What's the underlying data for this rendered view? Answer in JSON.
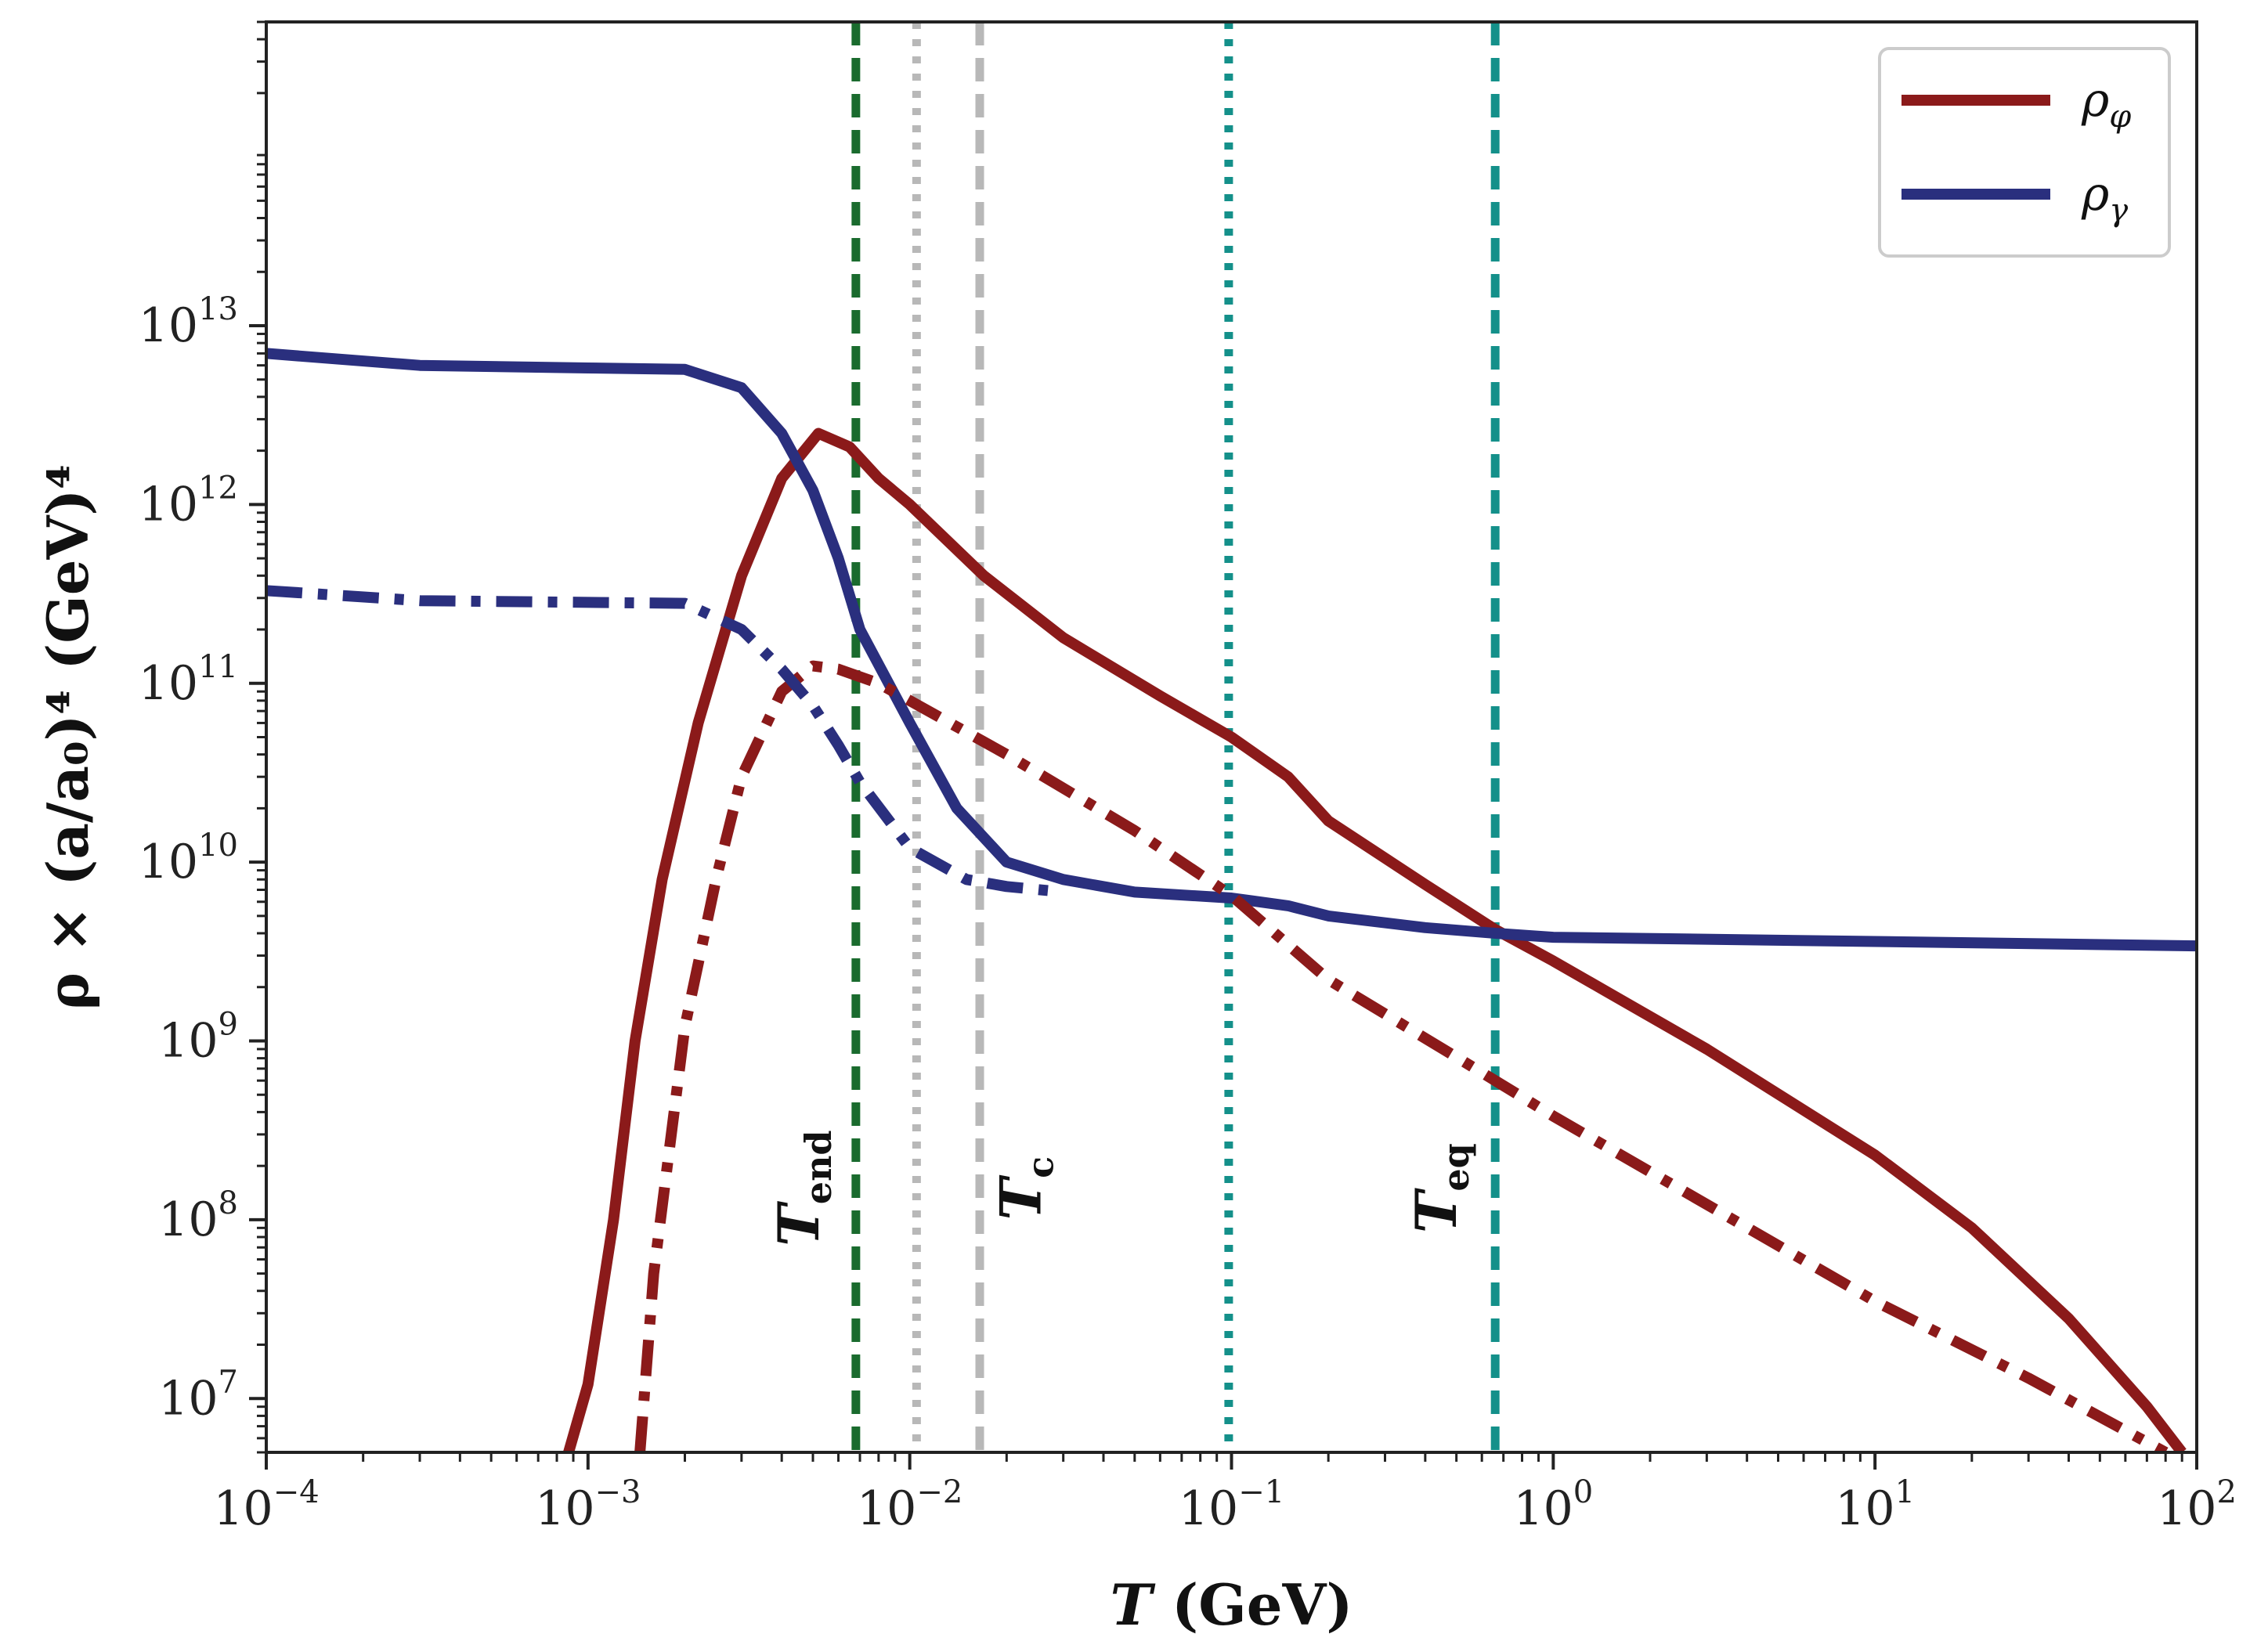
{
  "chart_data": {
    "type": "line",
    "xscale": "log",
    "yscale": "log",
    "xlim": [
      0.0001,
      100
    ],
    "ylim": [
      5000000,
      500000000000000
    ],
    "xlabel_var": "T",
    "xlabel_unit": "(GeV)",
    "ylabel": "ρ × (a/a₀)⁴ (GeV)⁴",
    "x_ticks": [
      {
        "value": 0.0001,
        "base": "10",
        "exp": "−4"
      },
      {
        "value": 0.001,
        "base": "10",
        "exp": "−3"
      },
      {
        "value": 0.01,
        "base": "10",
        "exp": "−2"
      },
      {
        "value": 0.1,
        "base": "10",
        "exp": "−1"
      },
      {
        "value": 1,
        "base": "10",
        "exp": "0"
      },
      {
        "value": 10,
        "base": "10",
        "exp": "1"
      },
      {
        "value": 100,
        "base": "10",
        "exp": "2"
      }
    ],
    "y_ticks": [
      {
        "value": 10000000,
        "base": "10",
        "exp": "7"
      },
      {
        "value": 100000000,
        "base": "10",
        "exp": "8"
      },
      {
        "value": 1000000000,
        "base": "10",
        "exp": "9"
      },
      {
        "value": 10000000000,
        "base": "10",
        "exp": "10"
      },
      {
        "value": 100000000000,
        "base": "10",
        "exp": "11"
      },
      {
        "value": 1000000000000,
        "base": "10",
        "exp": "12"
      },
      {
        "value": 10000000000000,
        "base": "10",
        "exp": "13"
      }
    ],
    "series": [
      {
        "name": "ρ_φ",
        "style": "solid",
        "color": "#8b1a1a",
        "points": [
          [
            0.00087,
            5000000
          ],
          [
            0.001,
            12000000
          ],
          [
            0.0012,
            100000000
          ],
          [
            0.0014,
            1000000000
          ],
          [
            0.0017,
            8000000000
          ],
          [
            0.0022,
            60000000000
          ],
          [
            0.003,
            400000000000
          ],
          [
            0.004,
            1400000000000
          ],
          [
            0.0052,
            2500000000000
          ],
          [
            0.0065,
            2100000000000
          ],
          [
            0.008,
            1400000000000
          ],
          [
            0.01,
            1000000000000
          ],
          [
            0.017,
            400000000000
          ],
          [
            0.03,
            180000000000
          ],
          [
            0.06,
            85000000000
          ],
          [
            0.1,
            50000000000
          ],
          [
            0.15,
            30000000000
          ],
          [
            0.2,
            17000000000
          ],
          [
            0.4,
            7500000000
          ],
          [
            0.66,
            4200000000
          ],
          [
            1,
            2800000000
          ],
          [
            3,
            900000000
          ],
          [
            10,
            230000000
          ],
          [
            20,
            90000000
          ],
          [
            40,
            28000000
          ],
          [
            70,
            9000000
          ],
          [
            90,
            5000000
          ]
        ]
      },
      {
        "name": "ρ_γ",
        "style": "solid",
        "color": "#2a2f7e",
        "points": [
          [
            0.0001,
            7000000000000
          ],
          [
            0.0003,
            6000000000000
          ],
          [
            0.001,
            5800000000000
          ],
          [
            0.002,
            5700000000000
          ],
          [
            0.003,
            4500000000000
          ],
          [
            0.004,
            2500000000000
          ],
          [
            0.005,
            1200000000000
          ],
          [
            0.006,
            500000000000
          ],
          [
            0.007,
            200000000000
          ],
          [
            0.01,
            60000000000
          ],
          [
            0.014,
            20000000000
          ],
          [
            0.02,
            10000000000
          ],
          [
            0.03,
            8000000000
          ],
          [
            0.05,
            6800000000
          ],
          [
            0.1,
            6300000000
          ],
          [
            0.15,
            5700000000
          ],
          [
            0.2,
            5000000000
          ],
          [
            0.4,
            4300000000
          ],
          [
            0.66,
            4000000000
          ],
          [
            1,
            3800000000
          ],
          [
            10,
            3600000000
          ],
          [
            100,
            3400000000
          ]
        ]
      },
      {
        "name": "ρ_φ (dash-dot)",
        "style": "dashdot",
        "color": "#8b1a1a",
        "points": [
          [
            0.00145,
            5000000
          ],
          [
            0.0016,
            50000000
          ],
          [
            0.002,
            1200000000
          ],
          [
            0.0025,
            8000000000
          ],
          [
            0.003,
            30000000000
          ],
          [
            0.004,
            90000000000
          ],
          [
            0.005,
            125000000000
          ],
          [
            0.006,
            120000000000
          ],
          [
            0.008,
            100000000000
          ],
          [
            0.01,
            80000000000
          ],
          [
            0.02,
            40000000000
          ],
          [
            0.05,
            15000000000
          ],
          [
            0.1,
            6500000000
          ],
          [
            0.2,
            2200000000
          ],
          [
            0.66,
            600000000
          ],
          [
            1,
            380000000
          ],
          [
            10,
            35000000
          ],
          [
            30,
            13000000
          ],
          [
            80,
            5000000
          ]
        ]
      },
      {
        "name": "ρ_γ (dash-dot)",
        "style": "dashdot",
        "color": "#2a2f7e",
        "points": [
          [
            0.0001,
            330000000000
          ],
          [
            0.0003,
            290000000000
          ],
          [
            0.002,
            280000000000
          ],
          [
            0.003,
            200000000000
          ],
          [
            0.004,
            120000000000
          ],
          [
            0.005,
            75000000000
          ],
          [
            0.006,
            45000000000
          ],
          [
            0.007,
            28000000000
          ],
          [
            0.01,
            12000000000
          ],
          [
            0.015,
            8000000000
          ],
          [
            0.02,
            7300000000
          ],
          [
            0.03,
            6800000000
          ]
        ]
      }
    ],
    "vlines": [
      {
        "x": 0.0068,
        "color": "#1a6b2e",
        "style": "dashed"
      },
      {
        "x": 0.0105,
        "color": "#b8b8b8",
        "style": "dotted"
      },
      {
        "x": 0.0165,
        "color": "#b8b8b8",
        "style": "dashed"
      },
      {
        "x": 0.098,
        "color": "#14908a",
        "style": "dotted"
      },
      {
        "x": 0.66,
        "color": "#14908a",
        "style": "dashed"
      }
    ],
    "annotations": [
      {
        "main": "T",
        "sub": "end",
        "x": 0.0045,
        "y": 150000000
      },
      {
        "main": "T",
        "sub": "c",
        "x": 0.022,
        "y": 150000000
      },
      {
        "main": "T",
        "sub": "eq",
        "x": 0.43,
        "y": 150000000
      }
    ],
    "legend": {
      "position": "top-right",
      "entries": [
        {
          "main": "ρ",
          "sub": "φ",
          "color": "#8b1a1a"
        },
        {
          "main": "ρ",
          "sub": "γ",
          "color": "#2a2f7e"
        }
      ]
    }
  }
}
